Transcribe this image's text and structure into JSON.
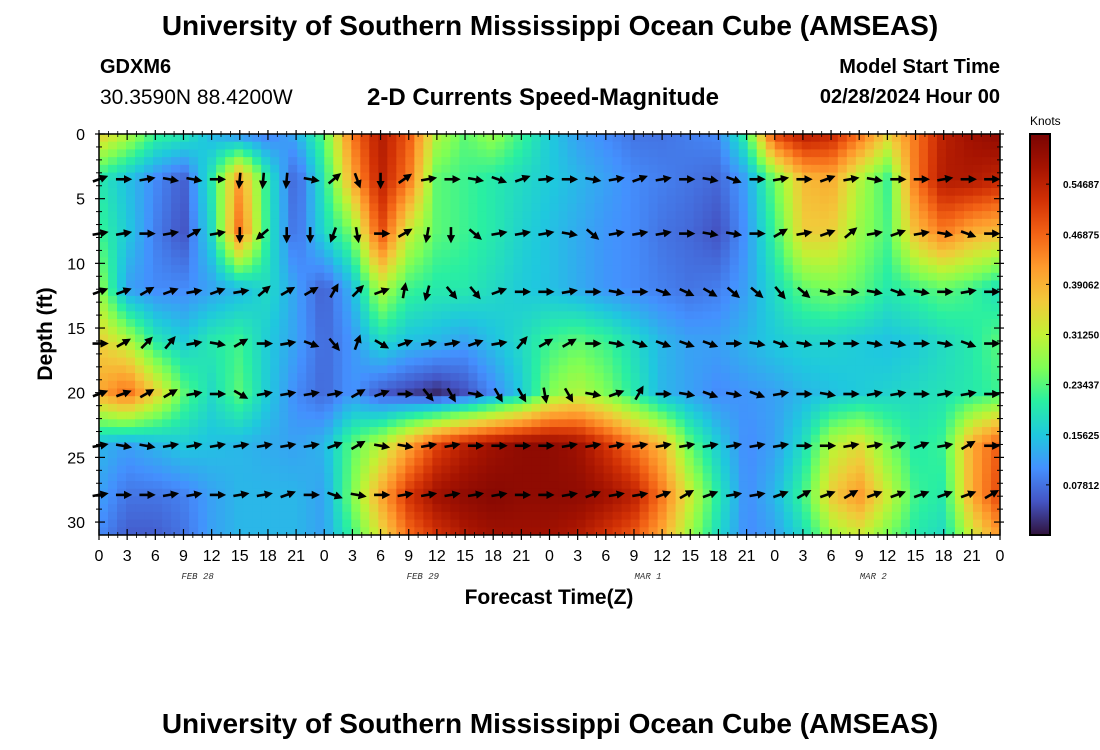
{
  "header": {
    "title": "University of Southern Mississippi Ocean Cube (AMSEAS)",
    "station": "GDXM6",
    "coords": "30.3590N  88.4200W",
    "chart_title": "2-D Currents Speed-Magnitude",
    "model_start_label": "Model Start Time",
    "model_start_value": "02/28/2024 Hour 00"
  },
  "footer": {
    "title": "University of Southern Mississippi Ocean Cube (AMSEAS)"
  },
  "colors": {
    "palette": [
      "#30123b",
      "#4454c4",
      "#4490fe",
      "#1fc8de",
      "#29efa2",
      "#7eff55",
      "#c3f134",
      "#f2c93a",
      "#fe9b2d",
      "#f36315",
      "#d23105",
      "#a51301",
      "#7a0403"
    ]
  },
  "chart_data": {
    "type": "heatmap",
    "title": "2-D Currents Speed-Magnitude",
    "xlabel": "Forecast Time(Z)",
    "ylabel": "Depth (ft)",
    "x_range_hours": [
      0,
      96
    ],
    "ylim": [
      0,
      31
    ],
    "y_ticks": [
      0,
      5,
      10,
      15,
      20,
      25,
      30
    ],
    "x_ticks": [
      "0",
      "3",
      "6",
      "9",
      "12",
      "15",
      "18",
      "21",
      "0",
      "3",
      "6",
      "9",
      "12",
      "15",
      "18",
      "21",
      "0",
      "3",
      "6",
      "9",
      "12",
      "15",
      "18",
      "21",
      "0",
      "3",
      "6",
      "9",
      "12",
      "15",
      "18",
      "21",
      "0"
    ],
    "date_labels": [
      {
        "text": "FEB 28",
        "hour": 10.5
      },
      {
        "text": "FEB 29",
        "hour": 34.5
      },
      {
        "text": "MAR 1",
        "hour": 58.5
      },
      {
        "text": "MAR 2",
        "hour": 82.5
      }
    ],
    "colorbar": {
      "label": "Knots",
      "range": [
        0,
        0.625
      ],
      "ticks": [
        "0.54687",
        "0.46875",
        "0.39062",
        "0.31250",
        "0.23437",
        "0.15625",
        "0.07812"
      ],
      "tick_values": [
        0.54687,
        0.46875,
        0.39062,
        0.3125,
        0.23437,
        0.15625,
        0.07812
      ]
    },
    "speed_grid": {
      "hours": [
        0,
        3,
        6,
        9,
        12,
        15,
        18,
        21,
        24,
        27,
        30,
        33,
        36,
        39,
        42,
        45,
        48,
        51,
        54,
        57,
        60,
        63,
        66,
        69,
        72,
        75,
        78,
        81,
        84,
        87,
        90,
        93,
        96
      ],
      "depths": [
        0,
        3.5,
        7.5,
        12,
        16,
        20,
        24,
        28,
        31
      ],
      "values": [
        [
          0.36,
          0.3,
          0.22,
          0.2,
          0.14,
          0.1,
          0.09,
          0.13,
          0.24,
          0.45,
          0.56,
          0.48,
          0.3,
          0.24,
          0.28,
          0.22,
          0.16,
          0.12,
          0.1,
          0.08,
          0.08,
          0.09,
          0.1,
          0.22,
          0.5,
          0.56,
          0.54,
          0.46,
          0.36,
          0.45,
          0.55,
          0.58,
          0.6
        ],
        [
          0.2,
          0.15,
          0.1,
          0.06,
          0.2,
          0.42,
          0.2,
          0.06,
          0.2,
          0.4,
          0.55,
          0.45,
          0.24,
          0.22,
          0.2,
          0.18,
          0.16,
          0.14,
          0.12,
          0.1,
          0.09,
          0.08,
          0.07,
          0.12,
          0.25,
          0.38,
          0.4,
          0.3,
          0.22,
          0.45,
          0.56,
          0.56,
          0.54
        ],
        [
          0.22,
          0.16,
          0.09,
          0.05,
          0.18,
          0.46,
          0.2,
          0.07,
          0.18,
          0.26,
          0.5,
          0.32,
          0.24,
          0.22,
          0.2,
          0.17,
          0.15,
          0.13,
          0.11,
          0.1,
          0.08,
          0.07,
          0.05,
          0.11,
          0.22,
          0.36,
          0.36,
          0.28,
          0.23,
          0.38,
          0.45,
          0.4,
          0.38
        ],
        [
          0.28,
          0.12,
          0.1,
          0.1,
          0.12,
          0.14,
          0.18,
          0.12,
          0.06,
          0.14,
          0.3,
          0.22,
          0.2,
          0.2,
          0.18,
          0.16,
          0.15,
          0.13,
          0.11,
          0.1,
          0.09,
          0.08,
          0.09,
          0.12,
          0.18,
          0.24,
          0.26,
          0.24,
          0.2,
          0.22,
          0.24,
          0.22,
          0.18
        ],
        [
          0.36,
          0.3,
          0.2,
          0.16,
          0.2,
          0.22,
          0.16,
          0.12,
          0.07,
          0.11,
          0.18,
          0.15,
          0.14,
          0.12,
          0.15,
          0.18,
          0.22,
          0.24,
          0.22,
          0.18,
          0.14,
          0.12,
          0.12,
          0.14,
          0.16,
          0.17,
          0.17,
          0.16,
          0.15,
          0.16,
          0.18,
          0.2,
          0.24
        ],
        [
          0.4,
          0.46,
          0.36,
          0.24,
          0.18,
          0.24,
          0.16,
          0.1,
          0.07,
          0.11,
          0.06,
          0.04,
          0.02,
          0.05,
          0.1,
          0.16,
          0.26,
          0.3,
          0.26,
          0.2,
          0.14,
          0.12,
          0.1,
          0.11,
          0.12,
          0.14,
          0.15,
          0.16,
          0.17,
          0.18,
          0.19,
          0.2,
          0.22
        ],
        [
          0.14,
          0.12,
          0.14,
          0.16,
          0.15,
          0.14,
          0.13,
          0.12,
          0.14,
          0.24,
          0.3,
          0.4,
          0.5,
          0.55,
          0.58,
          0.6,
          0.6,
          0.58,
          0.52,
          0.45,
          0.38,
          0.24,
          0.16,
          0.1,
          0.12,
          0.18,
          0.3,
          0.34,
          0.26,
          0.2,
          0.22,
          0.4,
          0.48
        ],
        [
          0.12,
          0.08,
          0.08,
          0.09,
          0.12,
          0.14,
          0.14,
          0.14,
          0.12,
          0.26,
          0.4,
          0.52,
          0.58,
          0.6,
          0.61,
          0.6,
          0.6,
          0.6,
          0.58,
          0.55,
          0.45,
          0.32,
          0.2,
          0.1,
          0.14,
          0.22,
          0.36,
          0.42,
          0.32,
          0.22,
          0.2,
          0.4,
          0.5
        ],
        [
          0.1,
          0.06,
          0.06,
          0.08,
          0.12,
          0.14,
          0.14,
          0.14,
          0.12,
          0.22,
          0.34,
          0.46,
          0.52,
          0.56,
          0.58,
          0.58,
          0.58,
          0.56,
          0.52,
          0.48,
          0.4,
          0.28,
          0.18,
          0.1,
          0.12,
          0.18,
          0.28,
          0.32,
          0.26,
          0.2,
          0.18,
          0.32,
          0.42
        ]
      ]
    },
    "current_vectors": {
      "depths": [
        3.5,
        7.7,
        12.2,
        16.2,
        20.1,
        24.1,
        27.9
      ],
      "start_hour": 0.0,
      "step_hours": 2.5,
      "directions_deg": [
        [
          70,
          90,
          80,
          100,
          100,
          90,
          185,
          185,
          185,
          100,
          50,
          160,
          180,
          55,
          80,
          90,
          100,
          110,
          70,
          85,
          90,
          100,
          80,
          70,
          80,
          90,
          100,
          110,
          90,
          80,
          90,
          70,
          80,
          100,
          90,
          90,
          80,
          90,
          90
        ],
        [
          80,
          80,
          90,
          80,
          60,
          80,
          180,
          230,
          180,
          180,
          200,
          170,
          90,
          60,
          190,
          180,
          130,
          80,
          80,
          80,
          100,
          130,
          80,
          80,
          80,
          90,
          100,
          100,
          90,
          60,
          80,
          70,
          50,
          80,
          70,
          80,
          100,
          110,
          90
        ],
        [
          70,
          70,
          60,
          70,
          80,
          70,
          80,
          50,
          60,
          60,
          30,
          45,
          70,
          10,
          195,
          140,
          140,
          70,
          90,
          90,
          80,
          90,
          100,
          90,
          110,
          115,
          120,
          130,
          130,
          140,
          130,
          100,
          95,
          100,
          110,
          100,
          90,
          80,
          90
        ],
        [
          90,
          60,
          45,
          40,
          80,
          100,
          60,
          90,
          80,
          110,
          140,
          20,
          120,
          70,
          80,
          80,
          70,
          80,
          40,
          60,
          60,
          90,
          100,
          110,
          110,
          110,
          110,
          90,
          100,
          110,
          100,
          90,
          90,
          100,
          100,
          90,
          100,
          110,
          90
        ],
        [
          70,
          70,
          60,
          60,
          80,
          90,
          120,
          80,
          80,
          80,
          80,
          60,
          70,
          90,
          140,
          150,
          100,
          150,
          150,
          170,
          150,
          100,
          70,
          30,
          90,
          100,
          110,
          100,
          110,
          80,
          90,
          100,
          90,
          80,
          80,
          90,
          80,
          80,
          90
        ],
        [
          80,
          100,
          100,
          80,
          80,
          80,
          80,
          80,
          80,
          80,
          70,
          60,
          100,
          100,
          80,
          80,
          90,
          90,
          90,
          90,
          80,
          80,
          80,
          80,
          80,
          80,
          80,
          80,
          80,
          80,
          90,
          90,
          80,
          80,
          70,
          70,
          80,
          60,
          90
        ],
        [
          80,
          90,
          90,
          80,
          80,
          90,
          80,
          80,
          70,
          90,
          110,
          100,
          90,
          80,
          80,
          80,
          80,
          80,
          90,
          90,
          80,
          70,
          80,
          80,
          70,
          60,
          70,
          80,
          80,
          70,
          60,
          70,
          60,
          70,
          70,
          70,
          70,
          70,
          60
        ]
      ]
    }
  }
}
